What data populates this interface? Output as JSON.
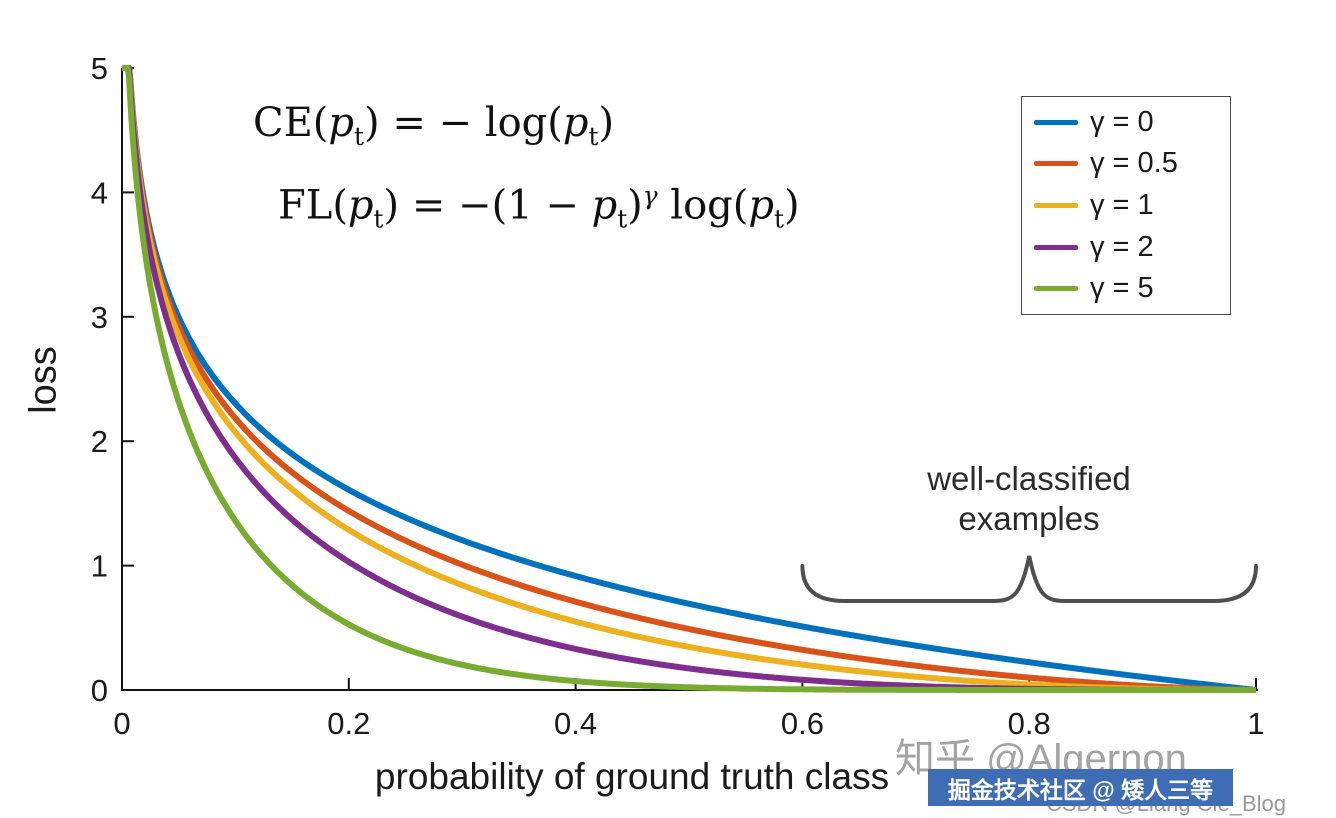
{
  "formulas": {
    "ce": "CE(*p*_{t}) = − log(*p*_{t})",
    "fl": "FL(*p*_{t}) = −(1 − *p*_{t})^{γ} log(*p*_{t})"
  },
  "watermarks": {
    "zhihu": "知乎 @Algernon",
    "juejin": "掘金技术社区 @ 矮人三等",
    "csdn": "CSDN @Liang Cie_Blog"
  },
  "chart_data": {
    "type": "line",
    "title": "",
    "xlabel": "probability of ground truth class",
    "ylabel": "loss",
    "xlim": [
      0,
      1
    ],
    "ylim": [
      0,
      5
    ],
    "x_ticks": [
      0,
      0.2,
      0.4,
      0.6,
      0.8,
      1
    ],
    "y_ticks": [
      0,
      1,
      2,
      3,
      4,
      5
    ],
    "grid": false,
    "legend_position": "top-right",
    "function": "FL(p_t) = −(1 − p_t)^γ log(p_t)",
    "sample_x": [
      0.1,
      0.2,
      0.3,
      0.4,
      0.5,
      0.6,
      0.7,
      0.8,
      0.9,
      1.0
    ],
    "series": [
      {
        "name": "γ = 0",
        "gamma": 0,
        "color": "#0072bd",
        "values": [
          2.303,
          1.609,
          1.204,
          0.916,
          0.693,
          0.511,
          0.357,
          0.223,
          0.105,
          0
        ]
      },
      {
        "name": "γ = 0.5",
        "gamma": 0.5,
        "color": "#d95319",
        "values": [
          2.184,
          1.439,
          1.007,
          0.71,
          0.49,
          0.323,
          0.195,
          0.1,
          0.033,
          0
        ]
      },
      {
        "name": "γ = 1",
        "gamma": 1,
        "color": "#edb120",
        "values": [
          2.072,
          1.288,
          0.843,
          0.55,
          0.347,
          0.204,
          0.107,
          0.045,
          0.011,
          0
        ]
      },
      {
        "name": "γ = 2",
        "gamma": 2,
        "color": "#7e2f8e",
        "values": [
          1.865,
          1.03,
          0.59,
          0.33,
          0.173,
          0.082,
          0.032,
          0.009,
          0.001,
          0
        ]
      },
      {
        "name": "γ = 5",
        "gamma": 5,
        "color": "#77ac30",
        "values": [
          1.36,
          0.527,
          0.202,
          0.071,
          0.022,
          0.005,
          0.001,
          0.0,
          0.0,
          0
        ]
      }
    ],
    "annotation": {
      "line1": "well-classified",
      "line2": "examples",
      "brace_x_range": [
        0.6,
        1.0
      ]
    }
  }
}
